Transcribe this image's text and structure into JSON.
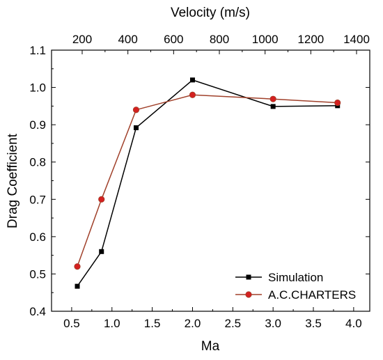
{
  "chart_data": {
    "type": "line",
    "xlabel": "Ma",
    "ylabel": "Drag Coefficient",
    "top_axis_label": "Velocity (m/s)",
    "xlim": [
      0.25,
      4.2
    ],
    "ylim": [
      0.4,
      1.1
    ],
    "x_ticks": [
      "0.5",
      "1.0",
      "1.5",
      "2.0",
      "2.5",
      "3.0",
      "3.5",
      "4.0"
    ],
    "y_ticks": [
      "0.4",
      "0.5",
      "0.6",
      "0.7",
      "0.8",
      "0.9",
      "1.0",
      "1.1"
    ],
    "top_ticks": [
      "200",
      "400",
      "600",
      "800",
      "1000",
      "1200",
      "1400"
    ],
    "legend_position": "bottom-right",
    "grid": false,
    "series": [
      {
        "name": "Simulation",
        "color": "#000000",
        "marker": "square",
        "x": [
          0.57,
          0.87,
          1.3,
          2.0,
          3.0,
          3.8
        ],
        "y": [
          0.467,
          0.56,
          0.892,
          1.02,
          0.949,
          0.951
        ]
      },
      {
        "name": "A.C.CHARTERS",
        "color": "#a0402a",
        "marker_color": "#d42020",
        "marker": "circle",
        "x": [
          0.57,
          0.87,
          1.3,
          2.0,
          3.0,
          3.8
        ],
        "y": [
          0.52,
          0.7,
          0.94,
          0.98,
          0.969,
          0.959
        ]
      }
    ]
  }
}
